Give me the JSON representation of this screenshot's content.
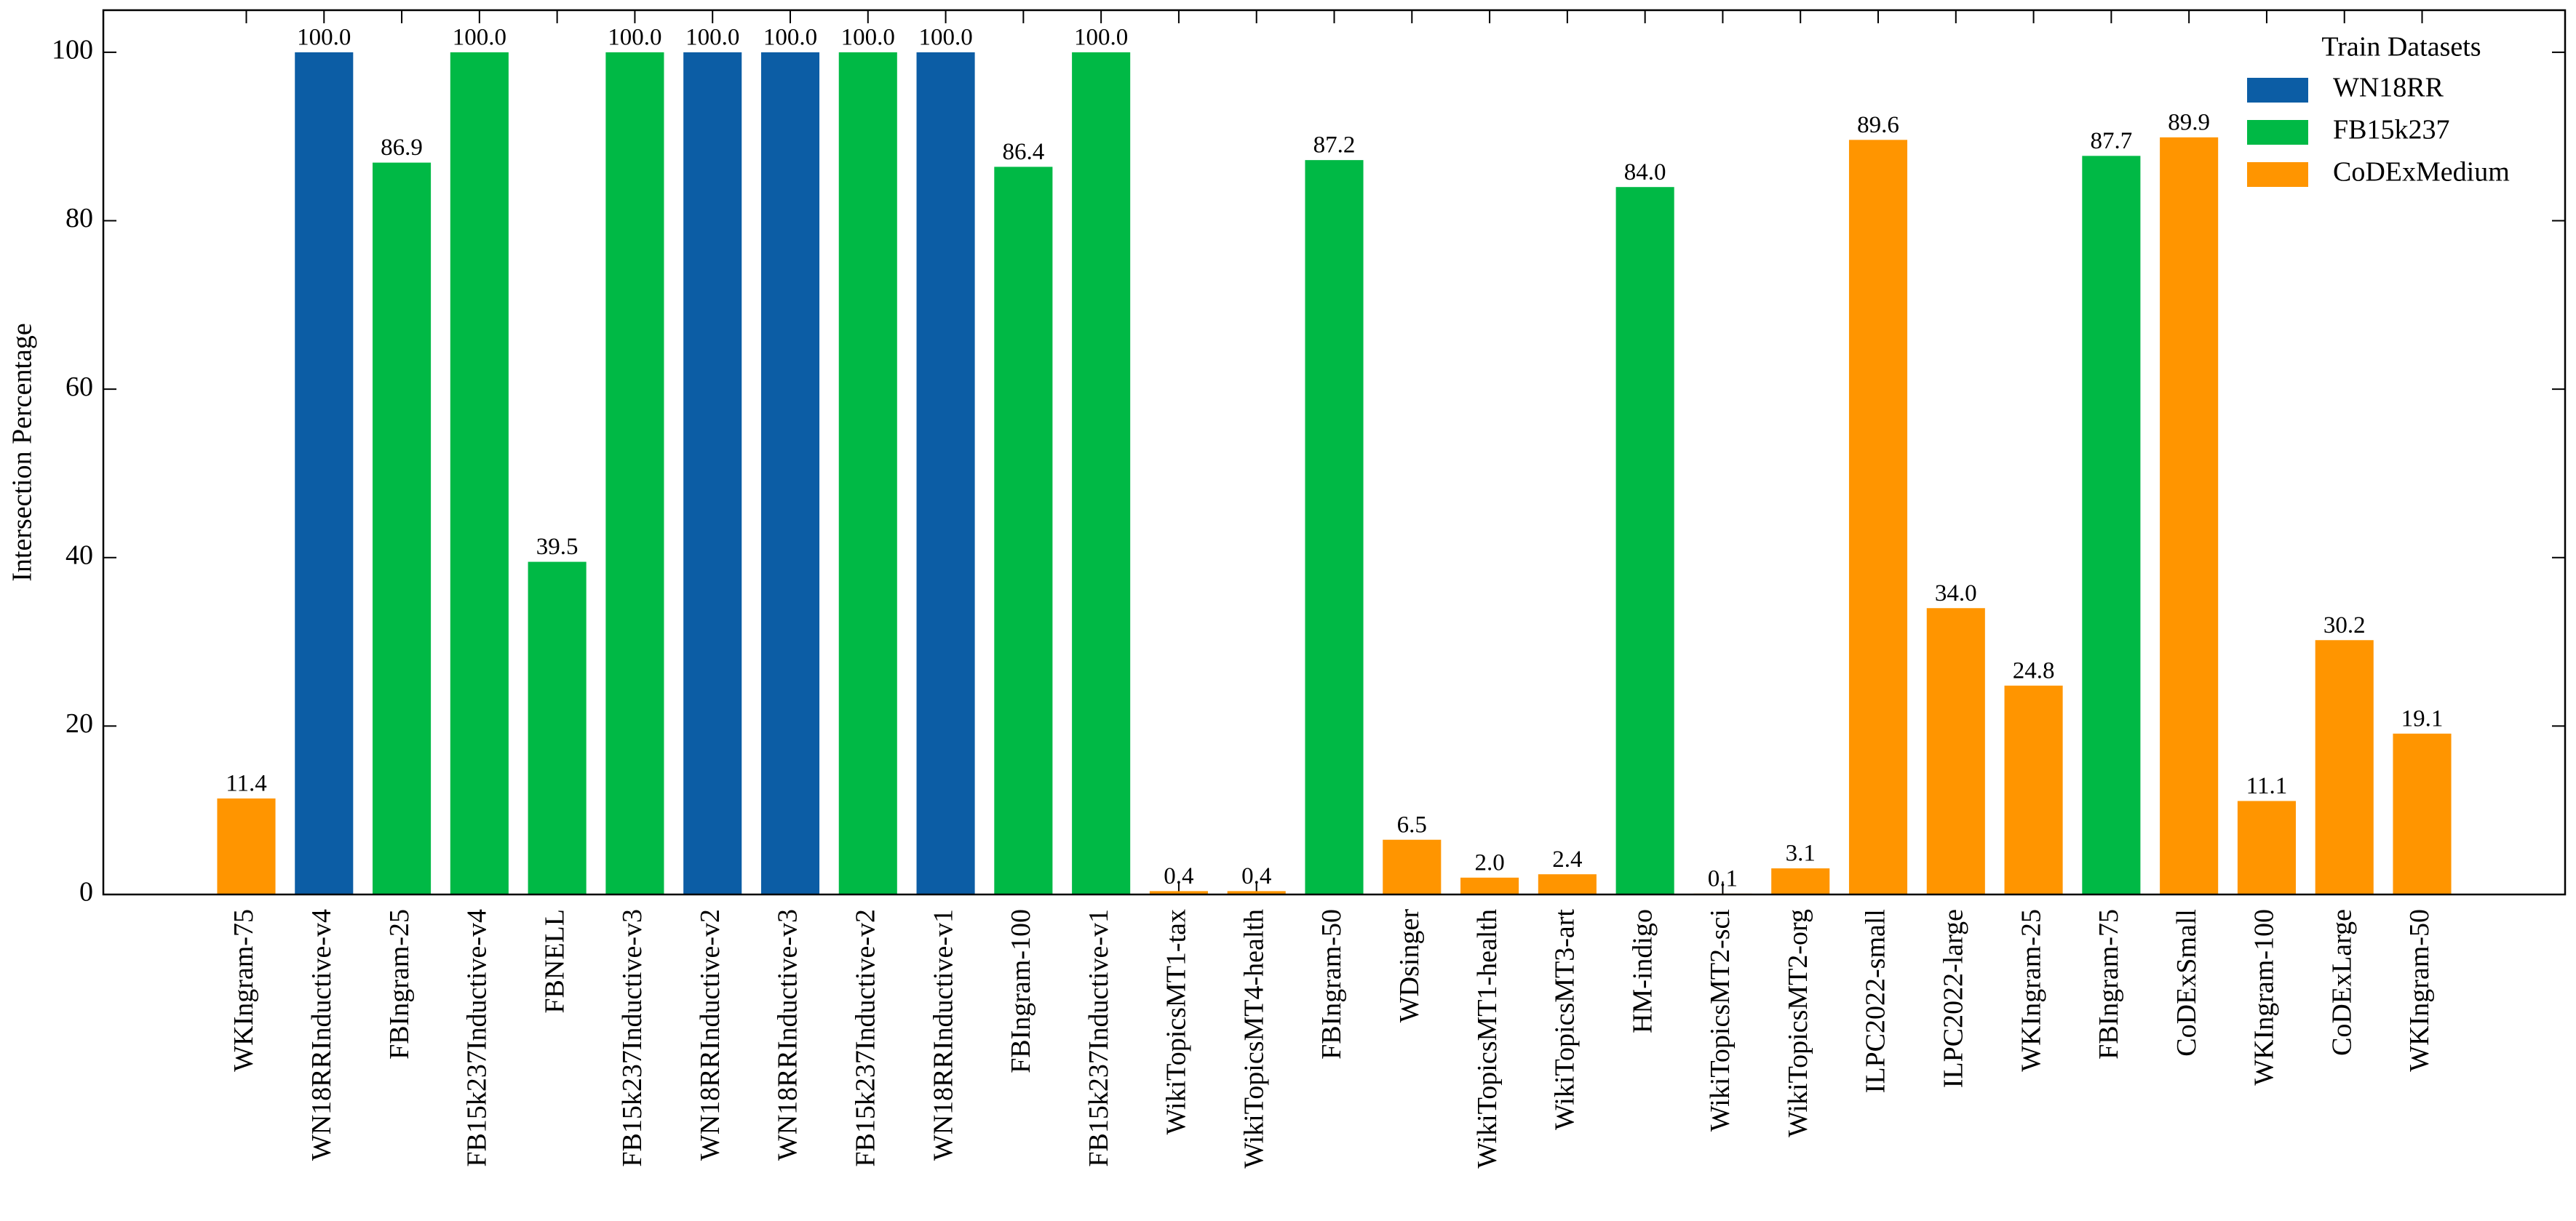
{
  "chart_data": {
    "type": "bar",
    "ylabel": "Intersection Percentage",
    "legend_title": "Train Datasets",
    "legend_loc": "upper right",
    "categories": [
      "WKIngram-75",
      "WN18RRInductive-v4",
      "FBIngram-25",
      "FB15k237Inductive-v4",
      "FBNELL",
      "FB15k237Inductive-v3",
      "WN18RRInductive-v2",
      "WN18RRInductive-v3",
      "FB15k237Inductive-v2",
      "WN18RRInductive-v1",
      "FBIngram-100",
      "FB15k237Inductive-v1",
      "WikiTopicsMT1-tax",
      "WikiTopicsMT4-health",
      "FBIngram-50",
      "WDsinger",
      "WikiTopicsMT1-health",
      "WikiTopicsMT3-art",
      "HM-indigo",
      "WikiTopicsMT2-sci",
      "WikiTopicsMT2-org",
      "ILPC2022-small",
      "ILPC2022-large",
      "WKIngram-25",
      "FBIngram-75",
      "CoDExSmall",
      "WKIngram-100",
      "CoDExLarge",
      "WKIngram-50"
    ],
    "series": [
      {
        "name": "WN18RR",
        "color": "#0C5DA5",
        "values": [
          null,
          100,
          null,
          null,
          null,
          null,
          100,
          100,
          null,
          100,
          null,
          null,
          null,
          null,
          null,
          null,
          null,
          null,
          null,
          null,
          null,
          null,
          null,
          null,
          null,
          null,
          null,
          null,
          null
        ],
        "value_labels": [
          null,
          "100.0",
          null,
          null,
          null,
          null,
          "100.0",
          "100.0",
          null,
          "100.0",
          null,
          null,
          null,
          null,
          null,
          null,
          null,
          null,
          null,
          null,
          null,
          null,
          null,
          null,
          null,
          null,
          null,
          null,
          null
        ]
      },
      {
        "name": "FB15k237",
        "color": "#00B945",
        "values": [
          null,
          null,
          86.9,
          100,
          39.5,
          100,
          null,
          null,
          100,
          null,
          86.4,
          100,
          null,
          null,
          87.2,
          null,
          null,
          null,
          84,
          null,
          null,
          null,
          null,
          null,
          87.7,
          null,
          null,
          null,
          null
        ],
        "value_labels": [
          null,
          null,
          "86.9",
          "100.0",
          "39.5",
          "100.0",
          null,
          null,
          "100.0",
          null,
          "86.4",
          "100.0",
          null,
          null,
          "87.2",
          null,
          null,
          null,
          "84.0",
          null,
          null,
          null,
          null,
          null,
          "87.7",
          null,
          null,
          null,
          null
        ]
      },
      {
        "name": "CoDExMedium",
        "color": "#FF9500",
        "values": [
          11.4,
          null,
          null,
          null,
          null,
          null,
          null,
          null,
          null,
          null,
          null,
          null,
          0.4,
          0.4,
          null,
          6.5,
          2,
          2.4,
          null,
          0.1,
          3.1,
          89.6,
          34,
          24.8,
          null,
          89.9,
          11.1,
          30.2,
          19.1
        ],
        "value_labels": [
          "11.4",
          null,
          null,
          null,
          null,
          null,
          null,
          null,
          null,
          null,
          null,
          null,
          "0.4",
          "0.4",
          null,
          "6.5",
          "2.0",
          "2.4",
          null,
          "0.1",
          "3.1",
          "89.6",
          "34.0",
          "24.8",
          null,
          "89.9",
          "11.1",
          "30.2",
          "19.1"
        ]
      }
    ],
    "ylim": [
      0,
      105
    ],
    "yticks": [
      0,
      20,
      40,
      60,
      80,
      100
    ]
  }
}
